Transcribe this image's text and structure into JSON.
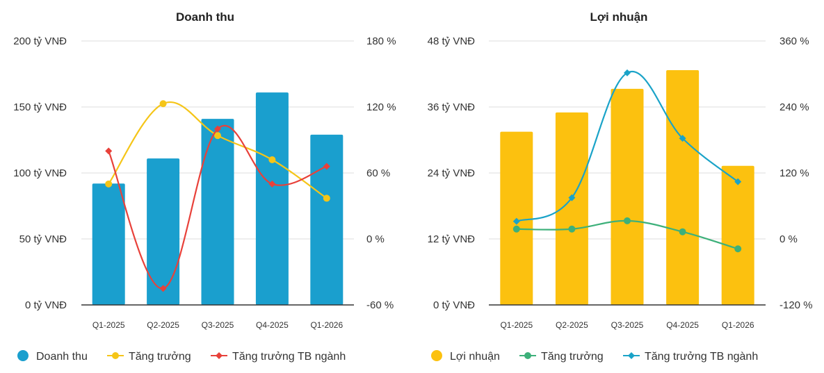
{
  "chart_data": [
    {
      "type": "bar",
      "title": "Doanh thu",
      "categories": [
        "Q1-2025",
        "Q2-2025",
        "Q3-2025",
        "Q4-2025",
        "Q1-2026"
      ],
      "left_axis": {
        "ylim": [
          0,
          200
        ],
        "ticks": [
          0,
          50,
          100,
          150,
          200
        ],
        "tick_labels": [
          "0 tỷ VNĐ",
          "50 tỷ VNĐ",
          "100 tỷ VNĐ",
          "150 tỷ VNĐ",
          "200 tỷ VNĐ"
        ]
      },
      "right_axis": {
        "ylim": [
          -60,
          180
        ],
        "ticks": [
          -60,
          0,
          60,
          120,
          180
        ],
        "tick_labels": [
          "-60 %",
          "0 %",
          "60 %",
          "120 %",
          "180 %"
        ]
      },
      "series": [
        {
          "name": "Doanh thu",
          "kind": "bar",
          "axis": "left",
          "color": "#1a9fce",
          "values": [
            92,
            111,
            141,
            161,
            129
          ]
        },
        {
          "name": "Tăng trưởng",
          "kind": "line",
          "axis": "right",
          "marker": "circle",
          "color": "#f5c518",
          "values": [
            50,
            123,
            94,
            72,
            37
          ]
        },
        {
          "name": "Tăng trưởng TB ngành",
          "kind": "line",
          "axis": "right",
          "marker": "diamond",
          "color": "#e8413a",
          "values": [
            80,
            -45,
            100,
            50,
            66
          ]
        }
      ],
      "legend": "bottom",
      "grid": true
    },
    {
      "type": "bar",
      "title": "Lợi nhuận",
      "categories": [
        "Q1-2025",
        "Q2-2025",
        "Q3-2025",
        "Q4-2025",
        "Q1-2026"
      ],
      "left_axis": {
        "ylim": [
          0,
          48
        ],
        "ticks": [
          0,
          12,
          24,
          36,
          48
        ],
        "tick_labels": [
          "0 tỷ VNĐ",
          "12 tỷ VNĐ",
          "24 tỷ VNĐ",
          "36 tỷ VNĐ",
          "48 tỷ VNĐ"
        ]
      },
      "right_axis": {
        "ylim": [
          -120,
          360
        ],
        "ticks": [
          -120,
          0,
          120,
          240,
          360
        ],
        "tick_labels": [
          "-120 %",
          "0 %",
          "120 %",
          "240 %",
          "360 %"
        ]
      },
      "series": [
        {
          "name": "Lợi nhuận",
          "kind": "bar",
          "axis": "left",
          "color": "#fcc10f",
          "values": [
            31.5,
            35,
            39.3,
            42.7,
            25.3
          ]
        },
        {
          "name": "Tăng trưởng",
          "kind": "line",
          "axis": "right",
          "marker": "circle",
          "color": "#3db07a",
          "values": [
            18,
            18,
            33,
            13,
            -18
          ]
        },
        {
          "name": "Tăng trưởng TB ngành",
          "kind": "line",
          "axis": "right",
          "marker": "diamond",
          "color": "#1aa3c8",
          "values": [
            32,
            75,
            302,
            183,
            104
          ]
        }
      ],
      "legend": "bottom",
      "grid": true
    }
  ]
}
